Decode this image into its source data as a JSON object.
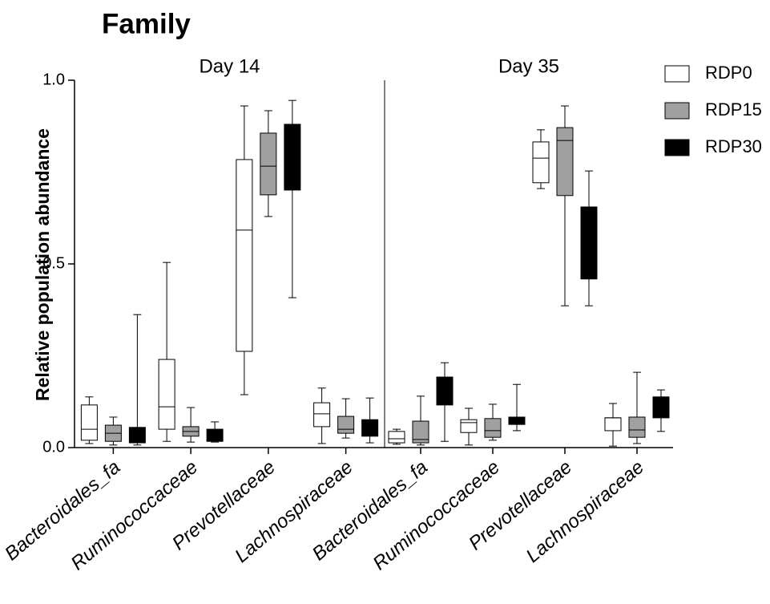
{
  "chart_data": {
    "type": "box",
    "title": "Family",
    "y_label": "Relative population abundance",
    "facets": [
      "Day 14",
      "Day 35"
    ],
    "categories": [
      "Bacteroidales_fa",
      "Ruminococcaceae",
      "Prevotellaceae",
      "Lachnospiraceae",
      "Bacteroidales_fa",
      "Ruminococcaceae",
      "Prevotellaceae",
      "Lachnospiraceae"
    ],
    "ylim": [
      0,
      1
    ],
    "yticks": [
      {
        "value": 0,
        "label": "0.0"
      },
      0.5,
      {
        "value": 1,
        "label": "1.0"
      }
    ],
    "legend": "top-right",
    "series": [
      {
        "name": "RDP0",
        "color": "#ffffff",
        "min": [
          0.011,
          0.017,
          0.144,
          0.011,
          0.009,
          0.007,
          0.705,
          0.004
        ],
        "q1": [
          0.02,
          0.05,
          0.262,
          0.057,
          0.013,
          0.041,
          0.721,
          0.046
        ],
        "median": [
          0.05,
          0.111,
          0.592,
          0.092,
          0.024,
          0.068,
          0.788,
          0.081
        ],
        "q3": [
          0.116,
          0.24,
          0.784,
          0.122,
          0.044,
          0.076,
          0.832,
          0.081
        ],
        "max": [
          0.138,
          0.504,
          0.93,
          0.162,
          0.05,
          0.107,
          0.865,
          0.12
        ]
      },
      {
        "name": "RDP15",
        "color": "#a0a0a0",
        "min": [
          0.007,
          0.015,
          0.629,
          0.026,
          0.007,
          0.02,
          0.386,
          0.011
        ],
        "q1": [
          0.017,
          0.031,
          0.688,
          0.039,
          0.013,
          0.028,
          0.686,
          0.028
        ],
        "median": [
          0.039,
          0.044,
          0.766,
          0.05,
          0.022,
          0.046,
          0.836,
          0.048
        ],
        "q3": [
          0.061,
          0.057,
          0.856,
          0.085,
          0.072,
          0.079,
          0.871,
          0.083
        ],
        "max": [
          0.083,
          0.109,
          0.917,
          0.133,
          0.14,
          0.118,
          0.93,
          0.205
        ]
      },
      {
        "name": "RDP30",
        "color": "#000000",
        "min": [
          0.007,
          0.015,
          0.408,
          0.013,
          0.017,
          0.046,
          0.386,
          0.044
        ],
        "q1": [
          0.013,
          0.017,
          0.701,
          0.031,
          0.116,
          0.063,
          0.459,
          0.081
        ],
        "median": [
          0.022,
          0.028,
          0.78,
          0.05,
          0.15,
          0.076,
          0.56,
          0.11
        ],
        "q3": [
          0.055,
          0.05,
          0.88,
          0.076,
          0.192,
          0.083,
          0.655,
          0.138
        ],
        "max": [
          0.362,
          0.07,
          0.945,
          0.135,
          0.231,
          0.172,
          0.753,
          0.157
        ]
      }
    ]
  }
}
